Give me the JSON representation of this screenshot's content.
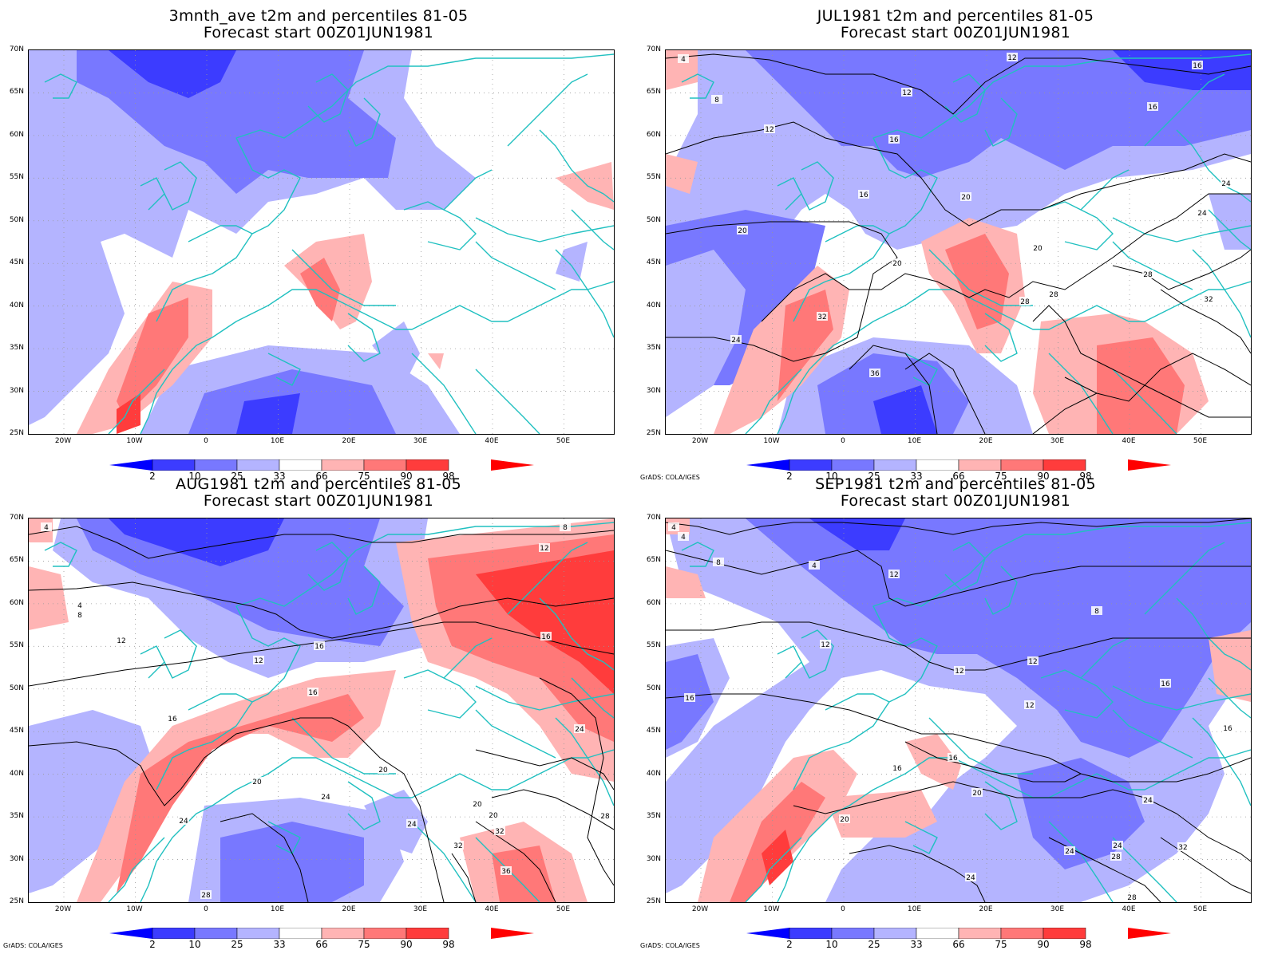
{
  "panels": [
    {
      "id": "ave",
      "title_line1": "3mnth_ave t2m and percentiles 81-05",
      "title_line2": "Forecast start 00Z01JUN1981",
      "credit": ""
    },
    {
      "id": "jul",
      "title_line1": "JUL1981 t2m and percentiles 81-05",
      "title_line2": "Forecast start 00Z01JUN1981",
      "credit": "GrADS: COLA/IGES"
    },
    {
      "id": "aug",
      "title_line1": "AUG1981 t2m and percentiles 81-05",
      "title_line2": "Forecast start 00Z01JUN1981",
      "credit": "GrADS: COLA/IGES"
    },
    {
      "id": "sep",
      "title_line1": "SEP1981 t2m and percentiles 81-05",
      "title_line2": "Forecast start 00Z01JUN1981",
      "credit": "GrADS: COLA/IGES"
    }
  ],
  "lat_labels": [
    "70N",
    "65N",
    "60N",
    "55N",
    "50N",
    "45N",
    "40N",
    "35N",
    "30N",
    "25N"
  ],
  "lon_labels": [
    "20W",
    "10W",
    "0",
    "10E",
    "20E",
    "30E",
    "40E",
    "50E"
  ],
  "colorbar": {
    "labels": [
      "2",
      "10",
      "25",
      "33",
      "66",
      "75",
      "90",
      "98"
    ],
    "colors": [
      "#0000ff",
      "#3c3cff",
      "#7878ff",
      "#b4b4ff",
      "#ffffff",
      "#ffb4b4",
      "#ff7878",
      "#ff3c3c",
      "#ff0000"
    ]
  },
  "contour_labels": {
    "jul": [
      "4",
      "8",
      "12",
      "12",
      "12",
      "16",
      "16",
      "16",
      "16",
      "20",
      "20",
      "20",
      "20",
      "24",
      "24",
      "24",
      "28",
      "28",
      "28",
      "32",
      "32",
      "36"
    ],
    "aug": [
      "4",
      "4",
      "8",
      "8",
      "12",
      "12",
      "12",
      "16",
      "16",
      "16",
      "16",
      "20",
      "20",
      "20",
      "20",
      "24",
      "24",
      "24",
      "24",
      "28",
      "28",
      "32",
      "32",
      "36"
    ],
    "sep": [
      "4",
      "4",
      "4",
      "8",
      "8",
      "12",
      "12",
      "12",
      "12",
      "12",
      "16",
      "16",
      "16",
      "16",
      "16",
      "20",
      "20",
      "24",
      "24",
      "24",
      "24",
      "28",
      "28",
      "32"
    ]
  },
  "colors": {
    "coast": "#20c0c0",
    "contour": "#000000",
    "grid": "#999999"
  }
}
